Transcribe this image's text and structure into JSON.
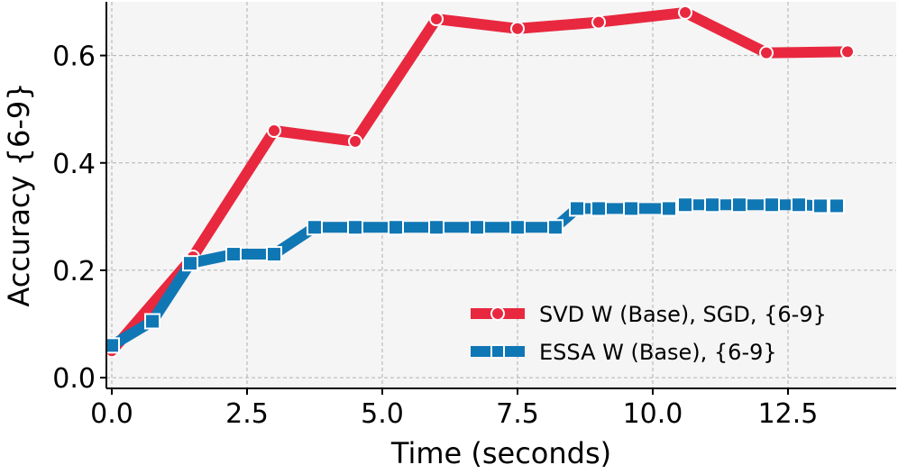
{
  "chart_data": {
    "type": "line",
    "title": "",
    "xlabel": "Time (seconds)",
    "ylabel": "Accuracy {6-9}",
    "xlim": [
      -0.1,
      14.5
    ],
    "ylim": [
      -0.02,
      0.7
    ],
    "xticks": [
      0.0,
      2.5,
      5.0,
      7.5,
      10.0,
      12.5
    ],
    "xtick_labels": [
      "0.0",
      "2.5",
      "5.0",
      "7.5",
      "10.0",
      "12.5"
    ],
    "yticks": [
      0.0,
      0.2,
      0.4,
      0.6
    ],
    "ytick_labels": [
      "0.0",
      "0.2",
      "0.4",
      "0.6"
    ],
    "grid": true,
    "legend_position": "lower-right",
    "colors": {
      "plot_background": "#f5f5f5",
      "grid": "#b0b0b0"
    },
    "series": [
      {
        "name": "SVD W (Base), SGD, {6-9}",
        "color": "#e8283f",
        "marker": "circle",
        "x": [
          0.0,
          1.5,
          3.0,
          4.5,
          6.0,
          7.5,
          9.0,
          10.6,
          12.1,
          13.6
        ],
        "y": [
          0.05,
          0.225,
          0.46,
          0.44,
          0.668,
          0.65,
          0.662,
          0.68,
          0.605,
          0.607
        ]
      },
      {
        "name": "ESSA W (Base), {6-9}",
        "color": "#1077b5",
        "marker": "square",
        "x": [
          0.0,
          0.75,
          1.45,
          2.25,
          3.0,
          3.75,
          4.5,
          5.25,
          6.0,
          6.75,
          7.5,
          8.2,
          8.6,
          9.0,
          9.6,
          10.3,
          10.6,
          11.1,
          11.6,
          12.2,
          12.7,
          13.1,
          13.4
        ],
        "y": [
          0.06,
          0.105,
          0.213,
          0.23,
          0.23,
          0.28,
          0.28,
          0.28,
          0.28,
          0.28,
          0.28,
          0.28,
          0.315,
          0.315,
          0.315,
          0.315,
          0.322,
          0.322,
          0.322,
          0.322,
          0.322,
          0.32,
          0.32
        ]
      }
    ]
  }
}
